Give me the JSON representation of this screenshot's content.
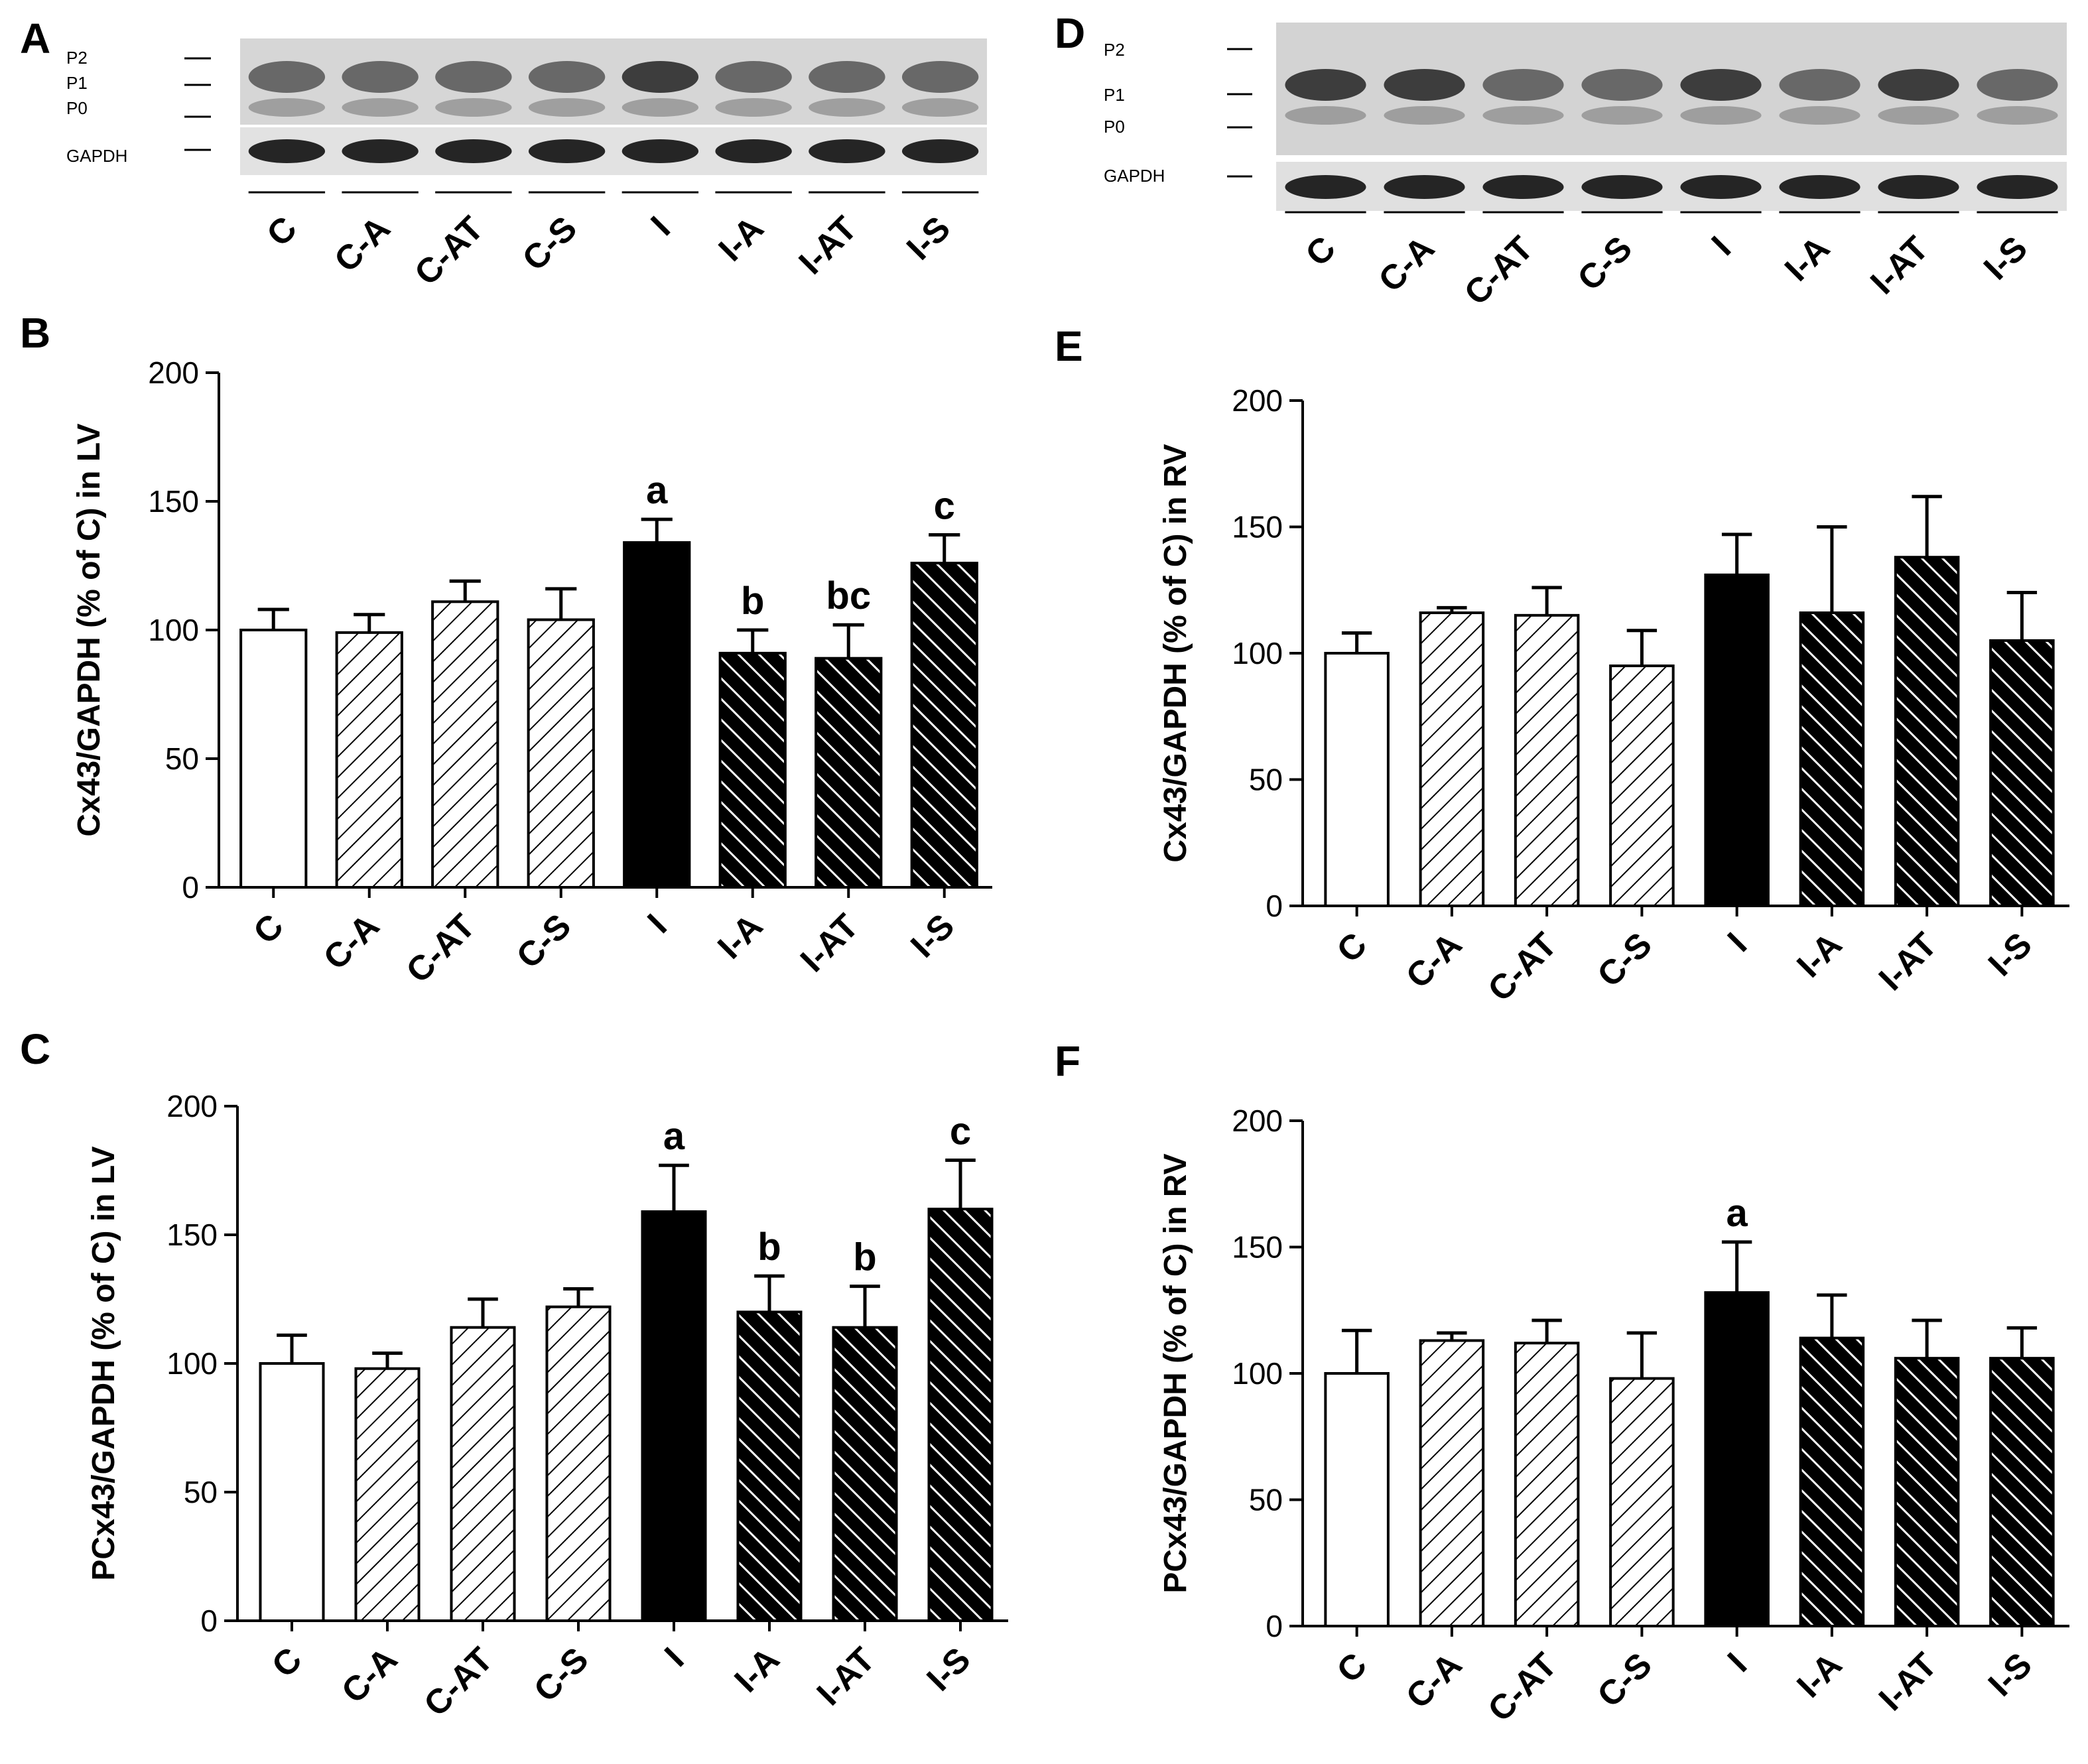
{
  "panels": {
    "A": {
      "letter": "A"
    },
    "D": {
      "letter": "D"
    }
  },
  "blots": [
    {
      "panel": "A",
      "band_labels": [
        "P2",
        "P1",
        "P0",
        "GAPDH"
      ],
      "lanes": [
        "C",
        "C-A",
        "C-AT",
        "C-S",
        "I",
        "I-A",
        "I-AT",
        "I-S"
      ]
    },
    {
      "panel": "D",
      "band_labels": [
        "P2",
        "P1",
        "P0",
        "GAPDH"
      ],
      "lanes": [
        "C",
        "C-A",
        "C-AT",
        "C-S",
        "I",
        "I-A",
        "I-AT",
        "I-S"
      ]
    }
  ],
  "colors": {
    "bar_fill": "#000000",
    "open_fill": "#ffffff",
    "axis": "#000000"
  },
  "chart_data": [
    {
      "panel": "B",
      "type": "bar",
      "ylabel": "Cx43/GAPDH (% of C) in LV",
      "ylim": [
        0,
        200
      ],
      "yticks": [
        0,
        50,
        100,
        150,
        200
      ],
      "categories": [
        "C",
        "C-A",
        "C-AT",
        "C-S",
        "I",
        "I-A",
        "I-AT",
        "I-S"
      ],
      "values": [
        100,
        99,
        111,
        104,
        134,
        91,
        89,
        126
      ],
      "errors": [
        8,
        7,
        8,
        12,
        9,
        9,
        13,
        11
      ],
      "significance": [
        "",
        "",
        "",
        "",
        "a",
        "b",
        "bc",
        "c"
      ],
      "fills": [
        "open",
        "light-hatch",
        "light-hatch",
        "light-hatch",
        "solid",
        "dark-hatch",
        "dark-hatch",
        "dark-hatch"
      ]
    },
    {
      "panel": "C",
      "type": "bar",
      "ylabel": "PCx43/GAPDH (% of C) in LV",
      "ylim": [
        0,
        200
      ],
      "yticks": [
        0,
        50,
        100,
        150,
        200
      ],
      "categories": [
        "C",
        "C-A",
        "C-AT",
        "C-S",
        "I",
        "I-A",
        "I-AT",
        "I-S"
      ],
      "values": [
        100,
        98,
        114,
        122,
        159,
        120,
        114,
        160
      ],
      "errors": [
        11,
        6,
        11,
        7,
        18,
        14,
        16,
        19
      ],
      "significance": [
        "",
        "",
        "",
        "",
        "a",
        "b",
        "b",
        "c"
      ],
      "fills": [
        "open",
        "light-hatch",
        "light-hatch",
        "light-hatch",
        "solid",
        "dark-hatch",
        "dark-hatch",
        "dark-hatch"
      ]
    },
    {
      "panel": "E",
      "type": "bar",
      "ylabel": "Cx43/GAPDH (% of C) in RV",
      "ylim": [
        0,
        200
      ],
      "yticks": [
        0,
        50,
        100,
        150,
        200
      ],
      "categories": [
        "C",
        "C-A",
        "C-AT",
        "C-S",
        "I",
        "I-A",
        "I-AT",
        "I-S"
      ],
      "values": [
        100,
        116,
        115,
        95,
        131,
        116,
        138,
        105
      ],
      "errors": [
        8,
        2,
        11,
        14,
        16,
        34,
        24,
        19
      ],
      "significance": [
        "",
        "",
        "",
        "",
        "",
        "",
        "",
        ""
      ],
      "fills": [
        "open",
        "light-hatch",
        "light-hatch",
        "light-hatch",
        "solid",
        "dark-hatch",
        "dark-hatch",
        "dark-hatch"
      ]
    },
    {
      "panel": "F",
      "type": "bar",
      "ylabel": "PCx43/GAPDH (% of C) in RV",
      "ylim": [
        0,
        200
      ],
      "yticks": [
        0,
        50,
        100,
        150,
        200
      ],
      "categories": [
        "C",
        "C-A",
        "C-AT",
        "C-S",
        "I",
        "I-A",
        "I-AT",
        "I-S"
      ],
      "values": [
        100,
        113,
        112,
        98,
        132,
        114,
        106,
        106
      ],
      "errors": [
        17,
        3,
        9,
        18,
        20,
        17,
        15,
        12
      ],
      "significance": [
        "",
        "",
        "",
        "",
        "a",
        "",
        "",
        ""
      ],
      "fills": [
        "open",
        "light-hatch",
        "light-hatch",
        "light-hatch",
        "solid",
        "dark-hatch",
        "dark-hatch",
        "dark-hatch"
      ]
    }
  ]
}
